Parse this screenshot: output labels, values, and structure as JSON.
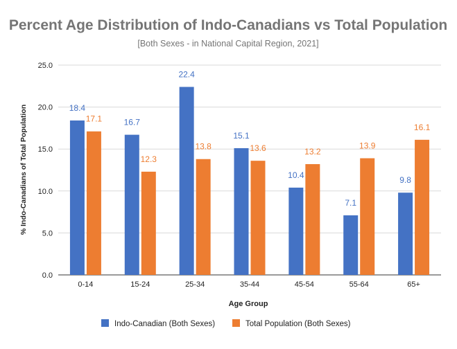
{
  "chart_data": {
    "type": "bar",
    "title": "Percent Age Distribution of Indo-Canadians vs Total Population",
    "subtitle": "[Both Sexes - in National Capital Region, 2021]",
    "xlabel": "Age Group",
    "ylabel": "% Indo-Canadians of Total Population",
    "ylim": [
      0,
      25
    ],
    "yticks": [
      "0.0",
      "5.0",
      "10.0",
      "15.0",
      "20.0",
      "25.0"
    ],
    "grid": true,
    "legend_position": "bottom",
    "categories": [
      "0-14",
      "15-24",
      "25-34",
      "35-44",
      "45-54",
      "55-64",
      "65+"
    ],
    "series": [
      {
        "name": "Indo-Canadian (Both Sexes)",
        "color": "#4472c4",
        "values": [
          18.4,
          16.7,
          22.4,
          15.1,
          10.4,
          7.1,
          9.8
        ],
        "labels": [
          "18.4",
          "16.7",
          "22.4",
          "15.1",
          "10.4",
          "7.1",
          "9.8"
        ]
      },
      {
        "name": "Total Population (Both Sexes)",
        "color": "#ed7d31",
        "values": [
          17.1,
          12.3,
          13.8,
          13.6,
          13.2,
          13.9,
          16.1
        ],
        "labels": [
          "17.1",
          "12.3",
          "13.8",
          "13.6",
          "13.2",
          "13.9",
          "16.1"
        ]
      }
    ],
    "colors": {
      "title": "#757575",
      "axis_text": "#222222",
      "grid": "#d9d9d9"
    }
  }
}
